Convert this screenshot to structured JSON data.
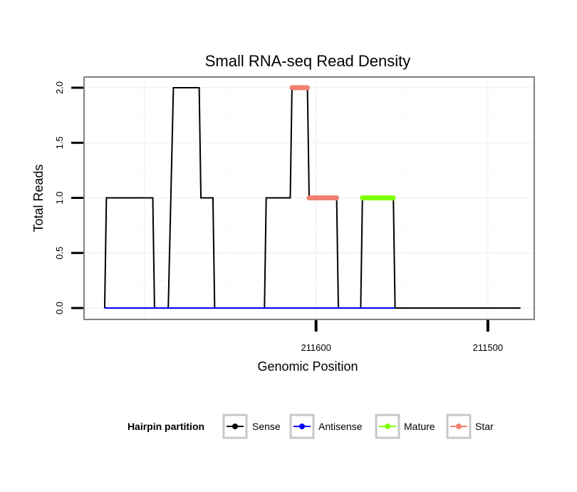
{
  "chart_data": {
    "type": "line",
    "title": "Small RNA-seq Read Density",
    "xlabel": "Genomic Position",
    "ylabel": "Total Reads",
    "xlim": [
      211735,
      211473
    ],
    "ylim": [
      0,
      2
    ],
    "x_ticks": [
      {
        "value": 211600,
        "label": "211600"
      },
      {
        "value": 211500,
        "label": "211500"
      }
    ],
    "y_ticks": [
      {
        "value": 0.0,
        "label": "0.0"
      },
      {
        "value": 0.5,
        "label": "0.5"
      },
      {
        "value": 1.0,
        "label": "1.0"
      },
      {
        "value": 1.5,
        "label": "1.5"
      },
      {
        "value": 2.0,
        "label": "2.0"
      }
    ],
    "legend": {
      "title": "Hairpin partition",
      "placement": "bottom",
      "entries": [
        {
          "name": "Sense",
          "color": "#000000"
        },
        {
          "name": "Antisense",
          "color": "#0000ff"
        },
        {
          "name": "Mature",
          "color": "#7fff00"
        },
        {
          "name": "Star",
          "color": "#f08070"
        }
      ]
    },
    "series": [
      {
        "name": "Sense",
        "color": "#000000",
        "points": [
          [
            211723,
            0
          ],
          [
            211722,
            1
          ],
          [
            211695,
            1
          ],
          [
            211694,
            0
          ],
          [
            211686,
            0
          ],
          [
            211683,
            2
          ],
          [
            211668,
            2
          ],
          [
            211667,
            1
          ],
          [
            211660,
            1
          ],
          [
            211659,
            0
          ],
          [
            211630,
            0
          ],
          [
            211629,
            1
          ],
          [
            211615,
            1
          ],
          [
            211614,
            2
          ],
          [
            211605,
            2
          ],
          [
            211604,
            1
          ],
          [
            211588,
            1
          ],
          [
            211587,
            0
          ],
          [
            211574,
            0
          ],
          [
            211573,
            1
          ],
          [
            211555,
            1
          ],
          [
            211554,
            0
          ],
          [
            211481,
            0
          ]
        ]
      },
      {
        "name": "Antisense",
        "color": "#0000ff",
        "points": [
          [
            211723,
            0
          ],
          [
            211554,
            0
          ]
        ]
      },
      {
        "name": "Mature",
        "color": "#7fff00",
        "points": [
          [
            211573,
            1
          ],
          [
            211555,
            1
          ]
        ]
      },
      {
        "name": "Star",
        "color": "#f08070",
        "segments": [
          [
            [
              211614,
              2
            ],
            [
              211605,
              2
            ]
          ],
          [
            [
              211604,
              1
            ],
            [
              211588,
              1
            ]
          ]
        ]
      }
    ]
  }
}
